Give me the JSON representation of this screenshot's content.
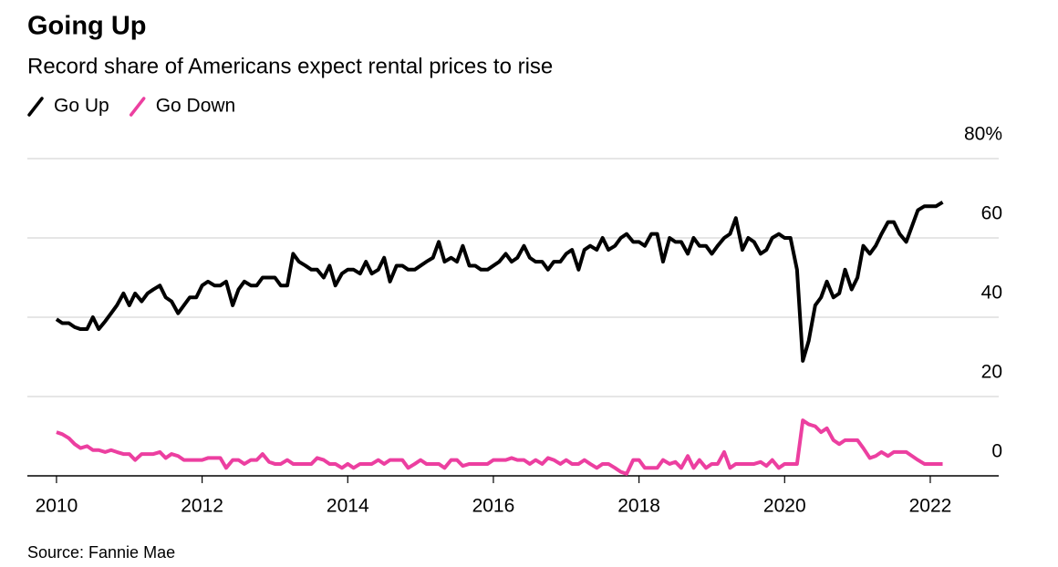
{
  "chart_data": {
    "type": "line",
    "title": "Going Up",
    "subtitle": "Record share of Americans expect rental prices to rise",
    "source": "Source: Fannie Mae",
    "x": [
      2010,
      2010.08,
      2010.17,
      2010.25,
      2010.33,
      2010.42,
      2010.5,
      2010.58,
      2010.67,
      2010.75,
      2010.83,
      2010.92,
      2011,
      2011.08,
      2011.17,
      2011.25,
      2011.33,
      2011.42,
      2011.5,
      2011.58,
      2011.67,
      2011.75,
      2011.83,
      2011.92,
      2012,
      2012.08,
      2012.17,
      2012.25,
      2012.33,
      2012.42,
      2012.5,
      2012.58,
      2012.67,
      2012.75,
      2012.83,
      2012.92,
      2013,
      2013.08,
      2013.17,
      2013.25,
      2013.33,
      2013.42,
      2013.5,
      2013.58,
      2013.67,
      2013.75,
      2013.83,
      2013.92,
      2014,
      2014.08,
      2014.17,
      2014.25,
      2014.33,
      2014.42,
      2014.5,
      2014.58,
      2014.67,
      2014.75,
      2014.83,
      2014.92,
      2015,
      2015.08,
      2015.17,
      2015.25,
      2015.33,
      2015.42,
      2015.5,
      2015.58,
      2015.67,
      2015.75,
      2015.83,
      2015.92,
      2016,
      2016.08,
      2016.17,
      2016.25,
      2016.33,
      2016.42,
      2016.5,
      2016.58,
      2016.67,
      2016.75,
      2016.83,
      2016.92,
      2017,
      2017.08,
      2017.17,
      2017.25,
      2017.33,
      2017.42,
      2017.5,
      2017.58,
      2017.67,
      2017.75,
      2017.83,
      2017.92,
      2018,
      2018.08,
      2018.17,
      2018.25,
      2018.33,
      2018.42,
      2018.5,
      2018.58,
      2018.67,
      2018.75,
      2018.83,
      2018.92,
      2019,
      2019.08,
      2019.17,
      2019.25,
      2019.33,
      2019.42,
      2019.5,
      2019.58,
      2019.67,
      2019.75,
      2019.83,
      2019.92,
      2020,
      2020.08,
      2020.17,
      2020.25,
      2020.33,
      2020.42,
      2020.5,
      2020.58,
      2020.67,
      2020.75,
      2020.83,
      2020.92,
      2021,
      2021.08,
      2021.17,
      2021.25,
      2021.33,
      2021.42,
      2021.5,
      2021.58,
      2021.67,
      2021.75,
      2021.83,
      2021.92,
      2022,
      2022.08,
      2022.17
    ],
    "series": [
      {
        "name": "Go Up",
        "color": "#000000",
        "values": [
          39.5,
          38.5,
          38.5,
          37.5,
          37,
          37,
          40,
          37,
          39,
          41,
          43,
          46,
          43,
          46,
          44,
          46,
          47,
          48,
          45,
          44,
          41,
          43,
          45,
          45,
          48,
          49,
          48,
          48,
          49,
          43,
          47,
          49,
          48,
          48,
          50,
          50,
          50,
          48,
          48,
          56,
          54,
          53,
          52,
          52,
          50,
          53,
          48,
          51,
          52,
          52,
          51,
          54,
          51,
          52,
          55,
          49,
          53,
          53,
          52,
          52,
          53,
          54,
          55,
          59,
          54,
          55,
          54,
          58,
          53,
          53,
          52,
          52,
          53,
          54,
          56,
          54,
          55,
          58,
          55,
          54,
          54,
          52,
          54,
          54,
          56,
          57,
          52,
          57,
          58,
          57,
          60,
          57,
          58,
          60,
          61,
          59,
          59,
          58,
          61,
          61,
          54,
          60,
          59,
          59,
          56,
          60,
          58,
          58,
          56,
          58,
          60,
          61,
          65,
          57,
          60,
          59,
          56,
          57,
          60,
          61,
          60,
          60,
          52,
          29,
          34,
          43,
          45,
          49,
          45,
          46,
          52,
          47,
          50,
          58,
          56,
          58,
          61,
          64,
          64,
          61,
          59,
          63,
          67,
          68,
          68,
          68,
          69
        ]
      },
      {
        "name": "Go Down",
        "color": "#ec3fa0",
        "values": [
          11,
          10.5,
          9.5,
          8,
          7,
          7.5,
          6.5,
          6.5,
          6,
          6.5,
          6,
          5.5,
          5.5,
          4,
          5.5,
          5.5,
          5.5,
          6,
          4.5,
          5.5,
          5,
          4,
          4,
          4,
          4,
          4.5,
          4.5,
          4.5,
          2,
          4,
          4,
          3,
          4,
          4,
          5.5,
          3.5,
          3,
          3,
          4,
          3,
          3,
          3,
          3,
          4.5,
          4,
          3,
          3,
          2,
          3,
          2,
          3,
          3,
          3,
          4,
          3,
          4,
          4,
          4,
          2,
          3,
          4,
          3,
          3,
          3,
          2,
          4,
          4,
          2.5,
          3,
          3,
          3,
          3,
          4,
          4,
          4,
          4.5,
          4,
          4,
          3,
          4,
          3,
          4.5,
          4,
          3,
          4,
          3,
          3,
          4,
          3,
          2,
          3,
          3,
          2,
          1,
          0.5,
          4,
          4,
          2,
          2,
          2,
          4,
          3,
          3.5,
          2,
          5,
          2,
          4,
          2,
          3,
          3,
          6,
          2,
          3,
          3,
          3,
          3,
          3.5,
          2.5,
          4,
          2,
          3,
          3,
          3,
          14,
          13,
          12.5,
          11,
          12,
          9,
          8,
          9,
          9,
          9,
          7,
          4.5,
          5,
          6,
          5,
          6,
          6,
          6,
          5,
          4,
          3,
          3,
          3,
          3
        ]
      }
    ],
    "xlim": [
      2009.6,
      2022.94
    ],
    "xticks": [
      2010,
      2012,
      2014,
      2016,
      2018,
      2020,
      2022
    ],
    "ylim": [
      0,
      80
    ],
    "yticks": [
      0,
      20,
      40,
      60,
      {
        "value": 80,
        "label": "80%"
      }
    ],
    "grid": true
  }
}
